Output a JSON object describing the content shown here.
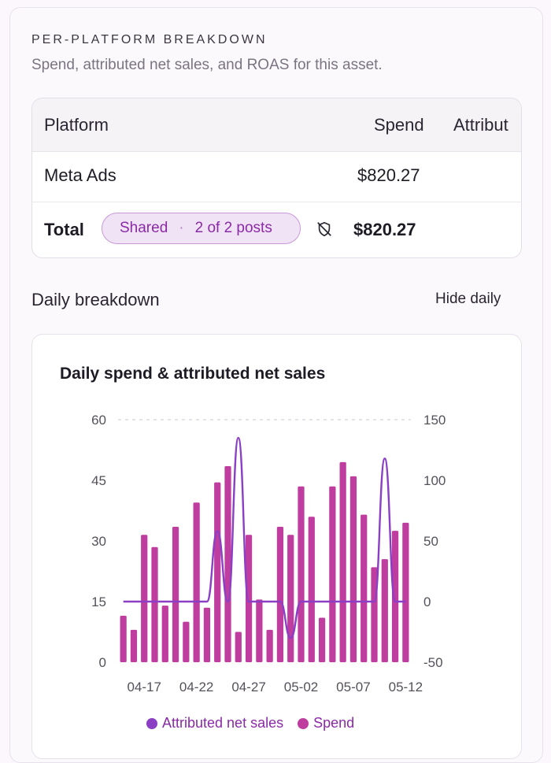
{
  "section": {
    "title": "PER-PLATFORM BREAKDOWN",
    "subtitle": "Spend, attributed net sales, and ROAS for this asset."
  },
  "table": {
    "headers": [
      "Platform",
      "Spend",
      "Attribut"
    ],
    "rows": [
      {
        "platform": "Meta Ads",
        "spend": "$820.27"
      }
    ],
    "total": {
      "label": "Total",
      "chip_label": "Shared",
      "chip_sep": "·",
      "chip_detail": "2 of 2 posts",
      "spend": "$820.27"
    }
  },
  "daily": {
    "title": "Daily breakdown",
    "toggle_label": "Hide daily"
  },
  "chart_data": {
    "type": "bar+line",
    "title": "Daily spend & attributed net sales",
    "x_tick_labels": [
      "04-17",
      "04-22",
      "04-27",
      "05-02",
      "05-07",
      "05-12"
    ],
    "left_axis": {
      "ticks": [
        "60",
        "45",
        "30",
        "15",
        "0"
      ],
      "ylim": [
        0,
        60
      ]
    },
    "right_axis": {
      "ticks": [
        "150",
        "100",
        "50",
        "0",
        "-50"
      ],
      "ylim": [
        -50,
        150
      ]
    },
    "grid": "top dashed line only",
    "legend_position": "bottom",
    "series": [
      {
        "name": "Spend",
        "type": "bar",
        "axis": "left",
        "color": "#c03da0",
        "values": [
          11.5,
          8,
          31.5,
          28.5,
          14,
          33.5,
          10,
          39.5,
          13.5,
          44.5,
          48.5,
          7.5,
          31.5,
          15.5,
          8,
          33.5,
          31.5,
          43.5,
          36,
          11,
          43.5,
          49.5,
          46,
          36.5,
          23.5,
          25.5,
          32.5,
          34.5
        ]
      },
      {
        "name": "Attributed net sales",
        "type": "line",
        "axis": "right",
        "color": "#8a3fc5",
        "values": [
          0,
          0,
          0,
          0,
          0,
          0,
          0,
          0,
          0,
          58,
          0,
          135,
          0,
          0,
          0,
          0,
          -30,
          0,
          0,
          0,
          0,
          0,
          0,
          0,
          0,
          118,
          0,
          0
        ]
      }
    ]
  },
  "colors": {
    "accent": "#8a2aa6",
    "bar": "#c03da0",
    "line": "#8a3fc5",
    "chip_bg": "#f1e3f6"
  }
}
